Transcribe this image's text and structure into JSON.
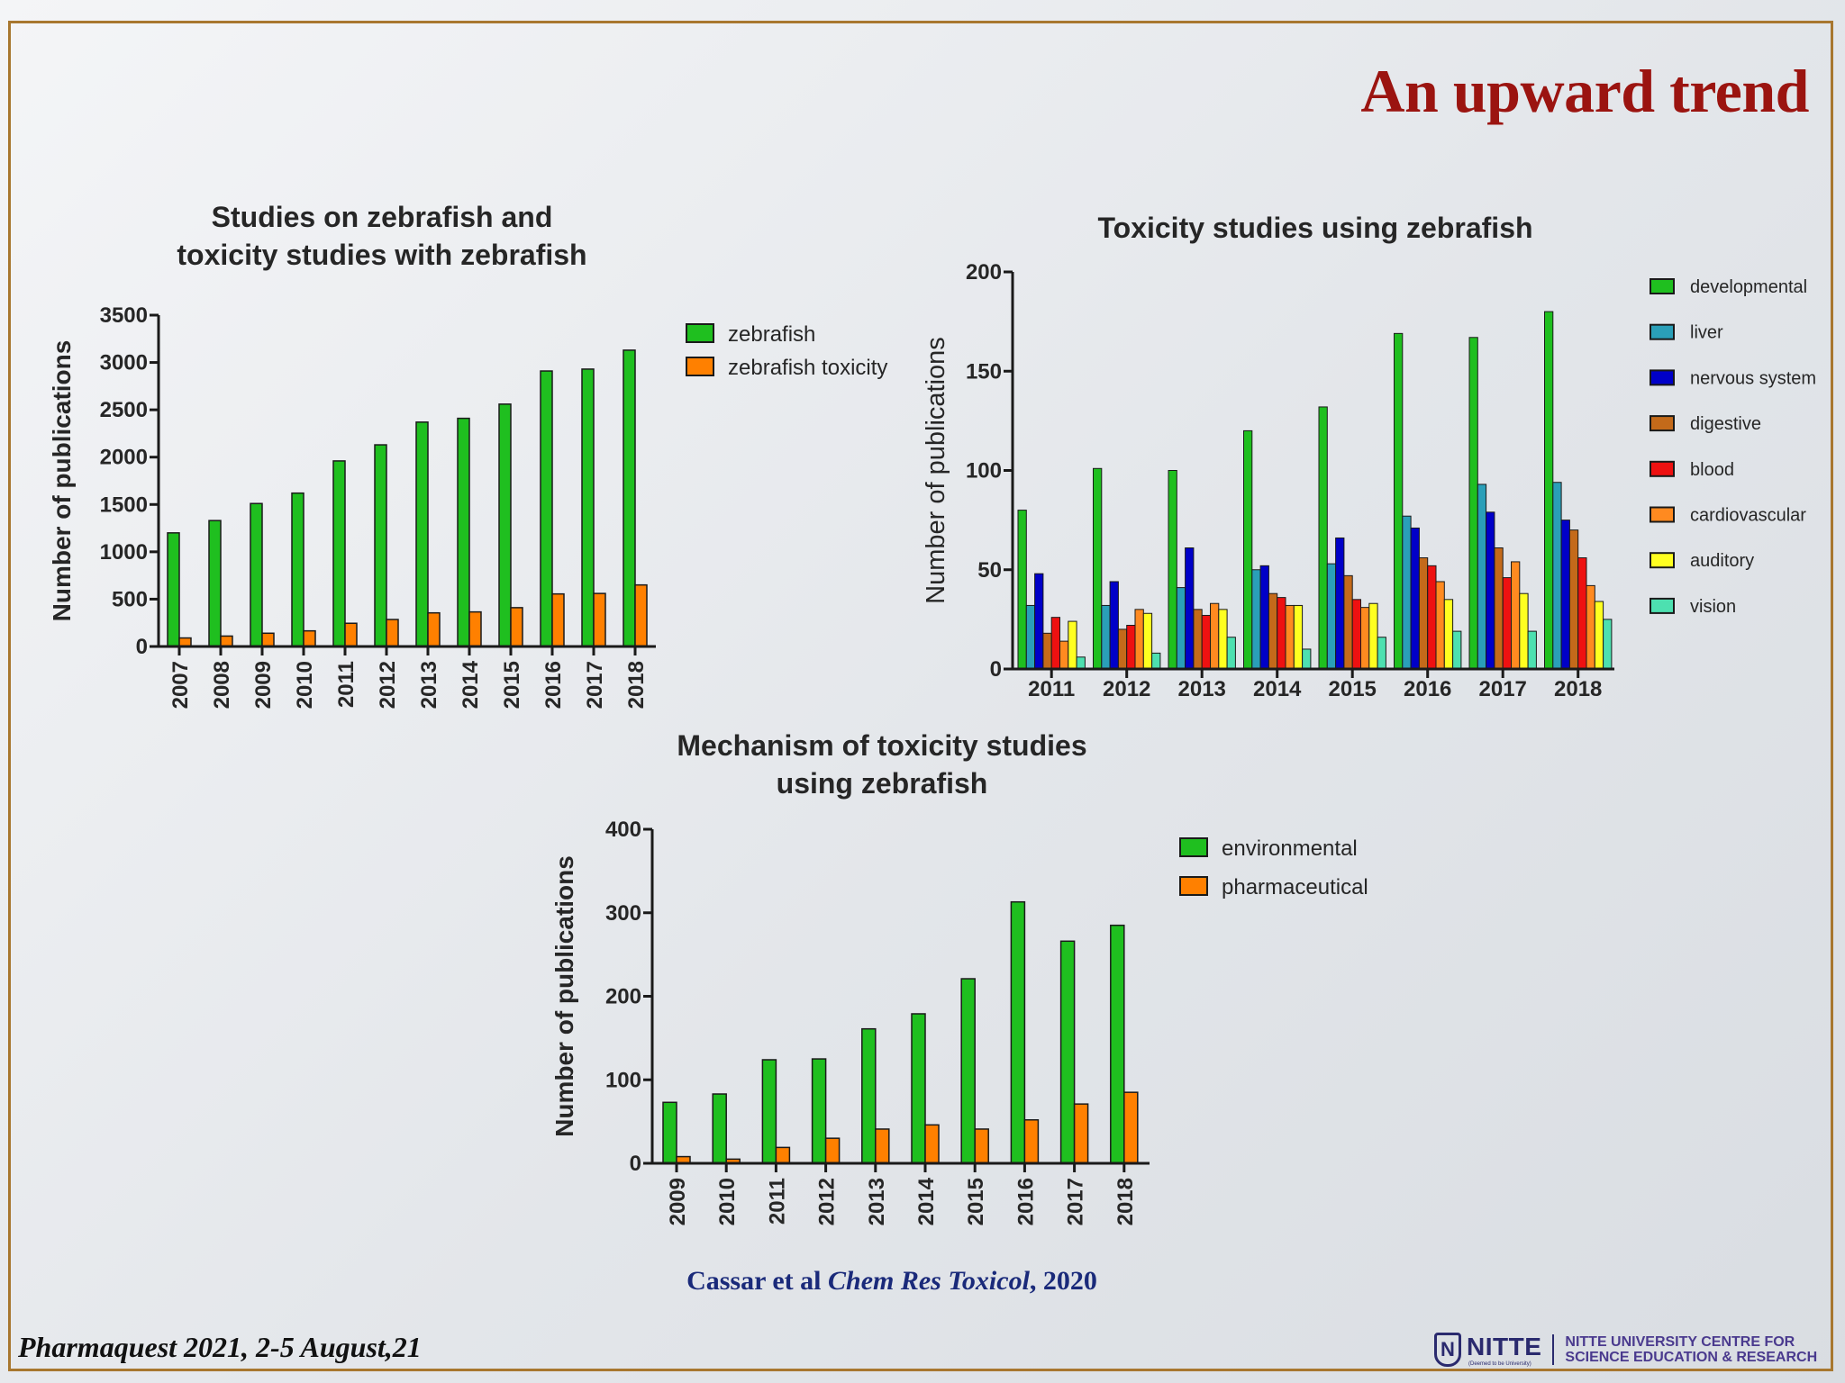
{
  "slide": {
    "title": "An upward trend",
    "citation_authors": "Cassar et al",
    "citation_journal": "Chem Res Toxicol",
    "citation_year": ", 2020",
    "footer_event": "Pharmaquest 2021, 2-5 August,21",
    "logo_text": "NITTE",
    "logo_subtext": "(Deemed to be University)",
    "logo_org_line1": "NITTE UNIVERSITY CENTRE FOR",
    "logo_org_line2": "SCIENCE EDUCATION & RESEARCH",
    "colors": {
      "title": "#9b1410",
      "citation": "#1a2a7a",
      "frame": "#a8772f",
      "logo": "#2a2a6e"
    }
  },
  "chart_data": [
    {
      "type": "bar",
      "title": [
        "Studies on zebrafish and",
        "toxicity studies with zebrafish"
      ],
      "ylabel": "Number of publications",
      "xlabel": "",
      "ylim": [
        0,
        3500
      ],
      "yticks": [
        0,
        500,
        1000,
        1500,
        2000,
        2500,
        3000,
        3500
      ],
      "categories": [
        "2007",
        "2008",
        "2009",
        "2010",
        "2011",
        "2012",
        "2013",
        "2014",
        "2015",
        "2016",
        "2017",
        "2018"
      ],
      "series": [
        {
          "name": "zebrafish",
          "color": "#1fbf1f",
          "values": [
            1200,
            1330,
            1510,
            1620,
            1960,
            2130,
            2370,
            2410,
            2560,
            2910,
            2930,
            3130
          ]
        },
        {
          "name": "zebrafish toxicity",
          "color": "#ff8000",
          "values": [
            90,
            110,
            140,
            165,
            245,
            285,
            355,
            365,
            410,
            555,
            560,
            650
          ]
        }
      ],
      "legend_position": "right",
      "grid": false
    },
    {
      "type": "bar",
      "title": [
        "Toxicity studies using zebrafish"
      ],
      "ylabel": "Number of publications",
      "xlabel": "",
      "ylim": [
        0,
        200
      ],
      "yticks": [
        0,
        50,
        100,
        150,
        200
      ],
      "categories": [
        "2011",
        "2012",
        "2013",
        "2014",
        "2015",
        "2016",
        "2017",
        "2018"
      ],
      "series": [
        {
          "name": "developmental",
          "color": "#1fbf1f",
          "values": [
            80,
            101,
            100,
            120,
            132,
            169,
            167,
            180
          ]
        },
        {
          "name": "liver",
          "color": "#2a9fb8",
          "values": [
            32,
            32,
            41,
            50,
            53,
            77,
            93,
            94
          ]
        },
        {
          "name": "nervous system",
          "color": "#0000c8",
          "values": [
            48,
            44,
            61,
            52,
            66,
            71,
            79,
            75
          ]
        },
        {
          "name": "digestive",
          "color": "#c46a1a",
          "values": [
            18,
            20,
            30,
            38,
            47,
            56,
            61,
            70
          ]
        },
        {
          "name": "blood",
          "color": "#ee1111",
          "values": [
            26,
            22,
            27,
            36,
            35,
            52,
            46,
            56
          ]
        },
        {
          "name": "cardiovascular",
          "color": "#ff8a20",
          "values": [
            14,
            30,
            33,
            32,
            31,
            44,
            54,
            42
          ]
        },
        {
          "name": "auditory",
          "color": "#ffff20",
          "values": [
            24,
            28,
            30,
            32,
            33,
            35,
            38,
            34
          ]
        },
        {
          "name": "vision",
          "color": "#4de0b0",
          "values": [
            6,
            8,
            16,
            10,
            16,
            19,
            19,
            25
          ]
        }
      ],
      "legend_position": "right",
      "grid": false
    },
    {
      "type": "bar",
      "title": [
        "Mechanism of toxicity studies",
        "using zebrafish"
      ],
      "ylabel": "Number of publications",
      "xlabel": "",
      "ylim": [
        0,
        400
      ],
      "yticks": [
        0,
        100,
        200,
        300,
        400
      ],
      "categories": [
        "2009",
        "2010",
        "2011",
        "2012",
        "2013",
        "2014",
        "2015",
        "2016",
        "2017",
        "2018"
      ],
      "series": [
        {
          "name": "environmental",
          "color": "#1fbf1f",
          "values": [
            73,
            83,
            124,
            125,
            161,
            179,
            221,
            313,
            266,
            285
          ]
        },
        {
          "name": "pharmaceutical",
          "color": "#ff8000",
          "values": [
            8,
            5,
            19,
            30,
            41,
            46,
            41,
            52,
            71,
            85
          ]
        }
      ],
      "legend_position": "top-right",
      "grid": false
    }
  ]
}
